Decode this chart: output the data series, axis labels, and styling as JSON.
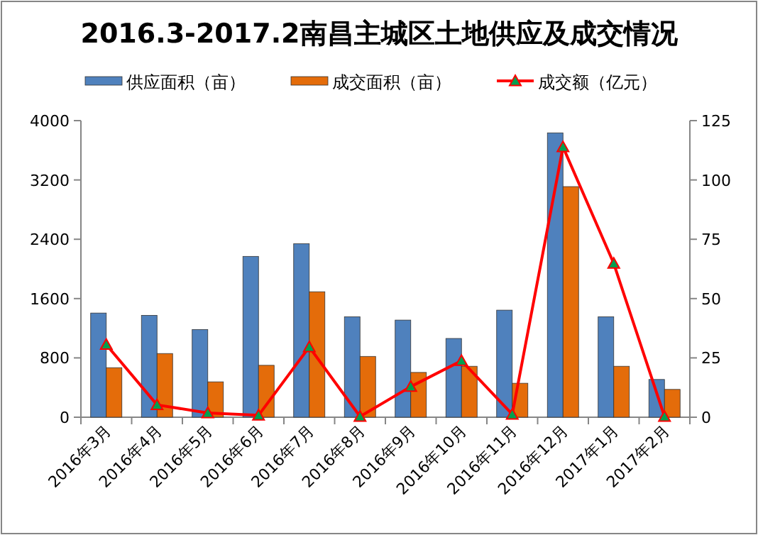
{
  "chart_data": {
    "type": "bar",
    "title": "2016.3-2017.2南昌主城区土地供应及成交情况",
    "categories": [
      "2016年3月",
      "2016年4月",
      "2016年5月",
      "2016年6月",
      "2016年7月",
      "2016年8月",
      "2016年9月",
      "2016年10月",
      "2016年11月",
      "2016年12月",
      "2017年1月",
      "2017年2月"
    ],
    "series": [
      {
        "name": "供应面积（亩）",
        "color": "#4f81bd",
        "values": [
          1405,
          1374,
          1183,
          2169,
          2340,
          1355,
          1310,
          1062,
          1444,
          3835,
          1355,
          509
        ]
      },
      {
        "name": "成交面积（亩）",
        "color": "#e46c0a",
        "values": [
          668,
          859,
          477,
          700,
          1692,
          820,
          604,
          687,
          458,
          3110,
          687,
          375
        ]
      },
      {
        "name": "成交额（亿元）",
        "type": "line",
        "axis": "y2",
        "color": "#ff0000",
        "marker": "triangle",
        "values": [
          30.6,
          5.2,
          1.8,
          0.8,
          29.6,
          0.3,
          12.9,
          23.8,
          1.2,
          113.9,
          64.8,
          0.3
        ]
      }
    ],
    "ylim": [
      0,
      4000
    ],
    "yticks": [
      0,
      800,
      1600,
      2400,
      3200,
      4000
    ],
    "y2lim": [
      0,
      125
    ],
    "y2ticks": [
      0,
      25,
      50,
      75,
      100,
      125
    ],
    "legend": "top",
    "grid": false
  }
}
